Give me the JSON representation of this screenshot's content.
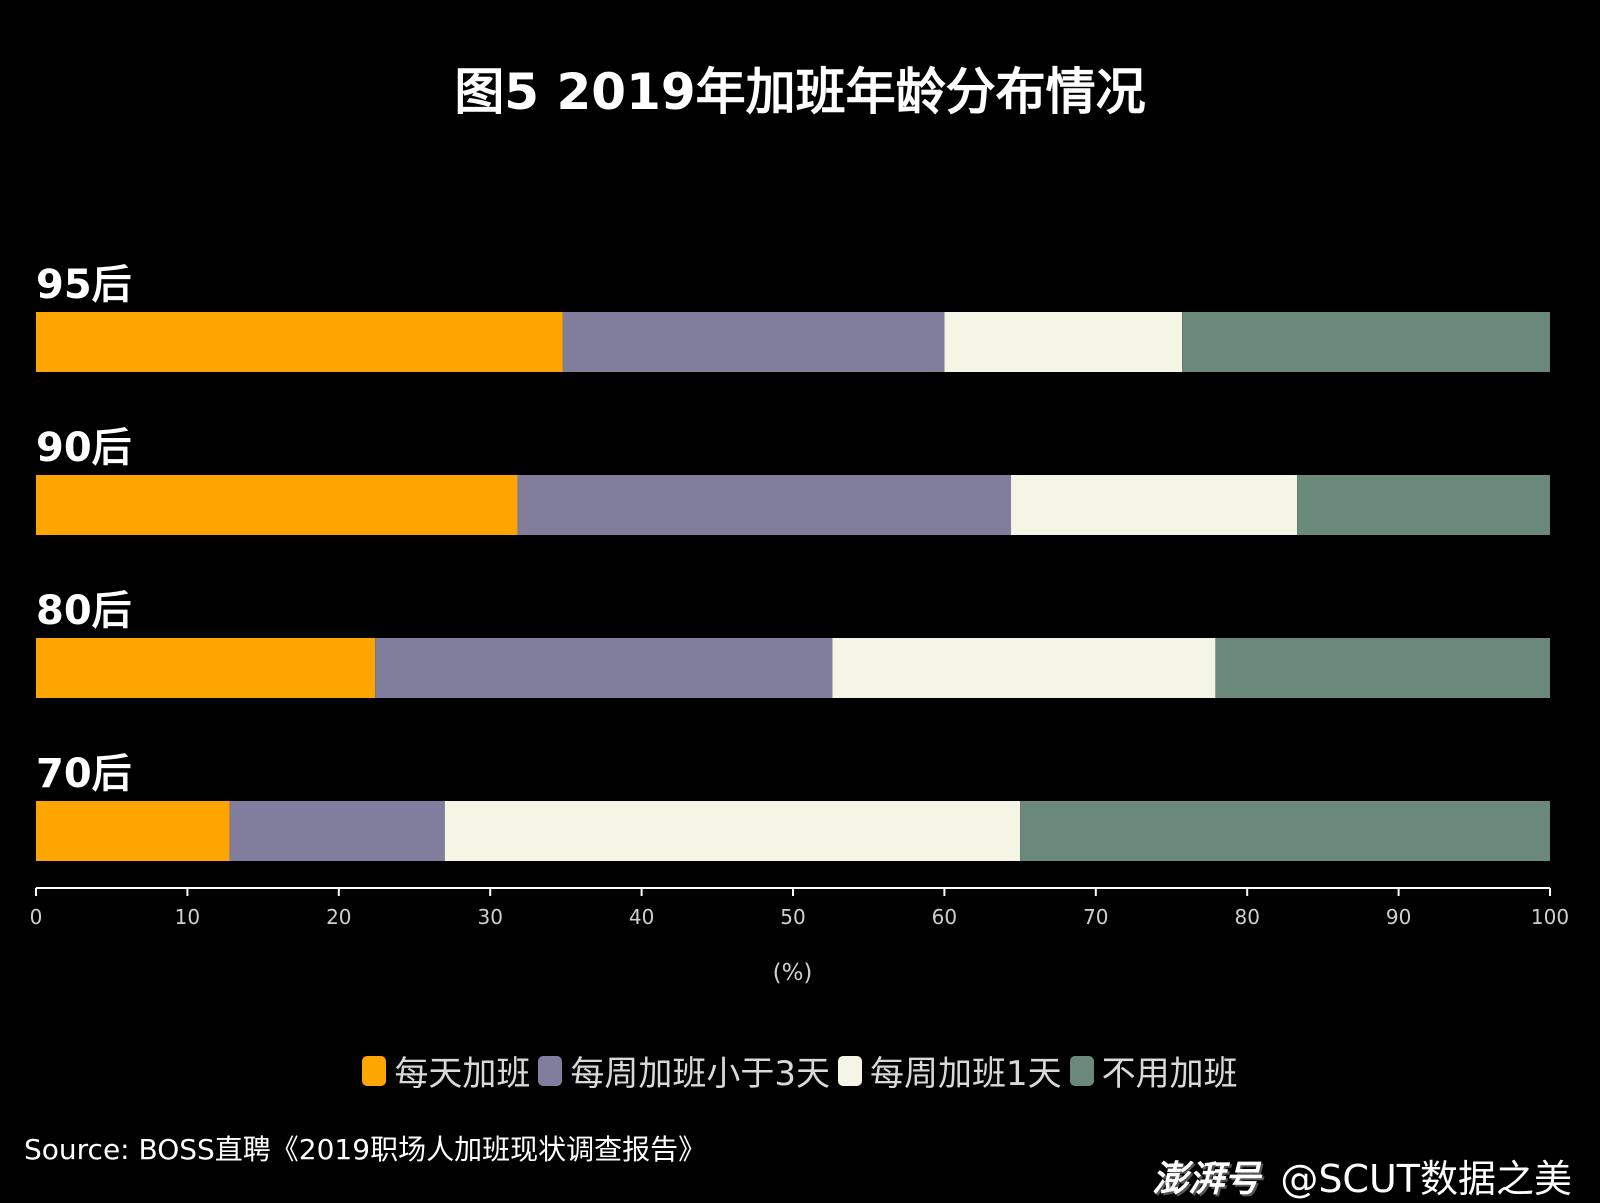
{
  "chart_data": {
    "type": "bar",
    "orientation": "horizontal",
    "stacked": true,
    "title": "图5 2019年加班年龄分布情况",
    "xlabel": "(%)",
    "ylabel": "",
    "xlim": [
      0,
      100
    ],
    "xticks": [
      0,
      10,
      20,
      30,
      40,
      50,
      60,
      70,
      80,
      90,
      100
    ],
    "categories": [
      "95后",
      "90后",
      "80后",
      "70后"
    ],
    "series": [
      {
        "name": "每天加班",
        "color": "#FFA500",
        "values": [
          34.8,
          31.8,
          22.4,
          12.8
        ]
      },
      {
        "name": "每周加班小于3天",
        "color": "#807E9C",
        "values": [
          25.2,
          32.6,
          30.2,
          14.2
        ]
      },
      {
        "name": "每周加班1天",
        "color": "#F5F5E6",
        "values": [
          15.7,
          18.9,
          25.3,
          38.0
        ]
      },
      {
        "name": "不用加班",
        "color": "#6B897A",
        "values": [
          24.3,
          16.7,
          22.1,
          35.0
        ]
      }
    ],
    "grid": false,
    "legend_position": "bottom"
  },
  "source": "Source: BOSS直聘《2019职场人加班现状调查报告》",
  "watermark": {
    "logo": "澎湃号",
    "account": "@SCUT数据之美"
  }
}
